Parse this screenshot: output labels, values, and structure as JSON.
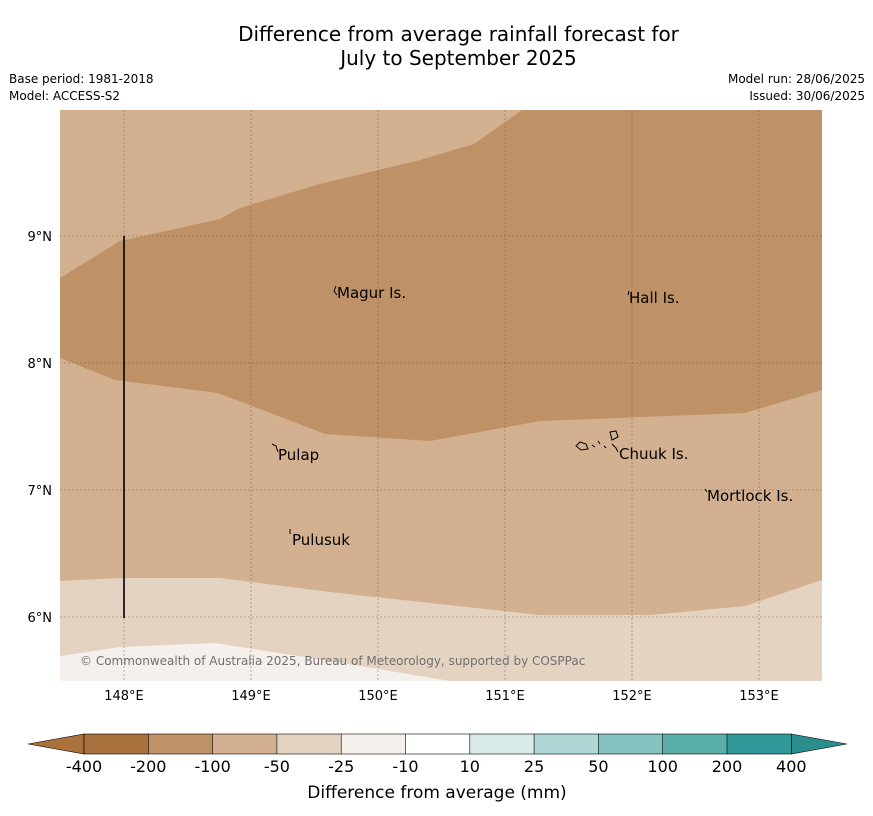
{
  "title": {
    "line1": "Difference from average rainfall forecast for",
    "line2": "July to September 2025"
  },
  "meta_left": {
    "base_period": "Base period: 1981-2018",
    "model": "Model: ACCESS-S2"
  },
  "meta_right": {
    "model_run": "Model run: 28/06/2025",
    "issued": "Issued: 30/06/2025"
  },
  "map": {
    "lon_ticks": [
      "148°E",
      "149°E",
      "150°E",
      "151°E",
      "152°E",
      "153°E"
    ],
    "lat_ticks": [
      "9°N",
      "8°N",
      "7°N",
      "6°N"
    ],
    "places": [
      {
        "name": "Magur Is."
      },
      {
        "name": "Hall Is."
      },
      {
        "name": "Pulap"
      },
      {
        "name": "Chuuk Is."
      },
      {
        "name": "Mortlock Is."
      },
      {
        "name": "Pulusuk"
      }
    ],
    "copyright": "© Commonwealth of Australia 2025, Bureau of Meteorology, supported by COSPPac"
  },
  "colorbar": {
    "ticks": [
      "-400",
      "-200",
      "-100",
      "-50",
      "-25",
      "-10",
      "10",
      "25",
      "50",
      "100",
      "200",
      "400"
    ],
    "colors": [
      "#a9713c",
      "#be9266",
      "#d2b090",
      "#e4d3c1",
      "#f5f0eb",
      "#ffffff",
      "#d9ecea",
      "#aed7d5",
      "#84c3c0",
      "#5aaeaa",
      "#31999a"
    ],
    "under_color": "#a9713c",
    "over_color": "#2b8d8c",
    "label": "Difference from average (mm)"
  }
}
